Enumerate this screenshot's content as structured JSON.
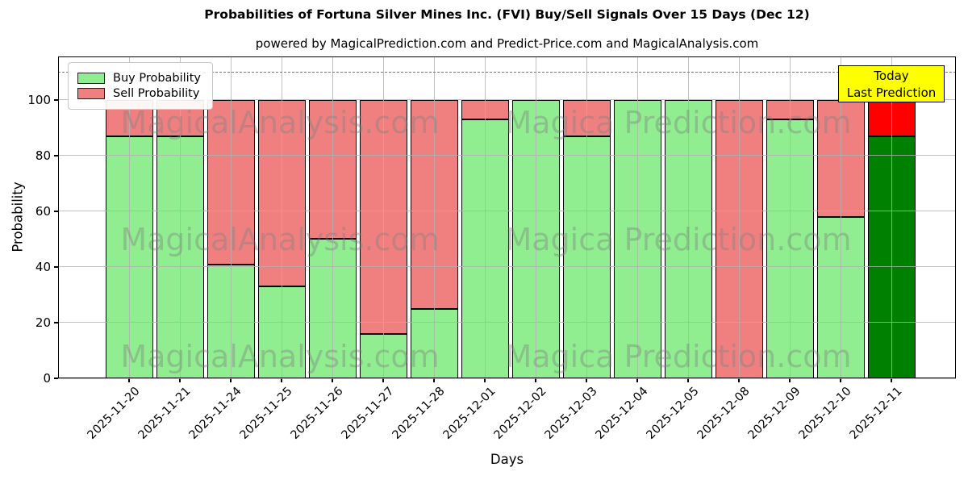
{
  "header": {
    "title": "Probabilities of Fortuna Silver Mines Inc. (FVI) Buy/Sell Signals Over 15 Days (Dec 12)",
    "subtitle": "powered by MagicalPrediction.com and Predict-Price.com and MagicalAnalysis.com"
  },
  "chart_data": {
    "type": "bar",
    "stacked": true,
    "title": "Probabilities of Fortuna Silver Mines Inc. (FVI) Buy/Sell Signals Over 15 Days (Dec 12)",
    "subtitle": "powered by MagicalPrediction.com and Predict-Price.com and MagicalAnalysis.com",
    "xlabel": "Days",
    "ylabel": "Probability",
    "ylim": [
      0,
      115.6
    ],
    "yticks": [
      0,
      20,
      40,
      60,
      80,
      100
    ],
    "grid": true,
    "categories": [
      "2025-11-20",
      "2025-11-21",
      "2025-11-24",
      "2025-11-25",
      "2025-11-26",
      "2025-11-27",
      "2025-11-28",
      "2025-12-01",
      "2025-12-02",
      "2025-12-03",
      "2025-12-04",
      "2025-12-05",
      "2025-12-08",
      "2025-12-09",
      "2025-12-10",
      "2025-12-11"
    ],
    "series": [
      {
        "name": "Buy Probability",
        "color": "#90ee90",
        "values": [
          87,
          87,
          41,
          33,
          50,
          16,
          25,
          93,
          100,
          87,
          100,
          100,
          0,
          93,
          58,
          87
        ]
      },
      {
        "name": "Sell Probability",
        "color": "#f08080",
        "values": [
          13,
          13,
          59,
          67,
          50,
          84,
          75,
          7,
          0,
          13,
          0,
          0,
          100,
          7,
          42,
          13
        ]
      }
    ],
    "highlight_last_bar": {
      "buy_color": "#008000",
      "sell_color": "#ff0000"
    },
    "legend": {
      "position": "upper left"
    },
    "guide_line": {
      "y": 110,
      "style": "dashed",
      "color": "#7a7a7a"
    },
    "annotation_box": {
      "lines": [
        "Today",
        "Last Prediction"
      ],
      "bg_color": "#ffff00",
      "border_color": "#000000"
    },
    "watermarks": {
      "left_text": "MagicalAnalysis.com",
      "right_text": "Magica Prediction.com",
      "color": "#808080"
    }
  }
}
